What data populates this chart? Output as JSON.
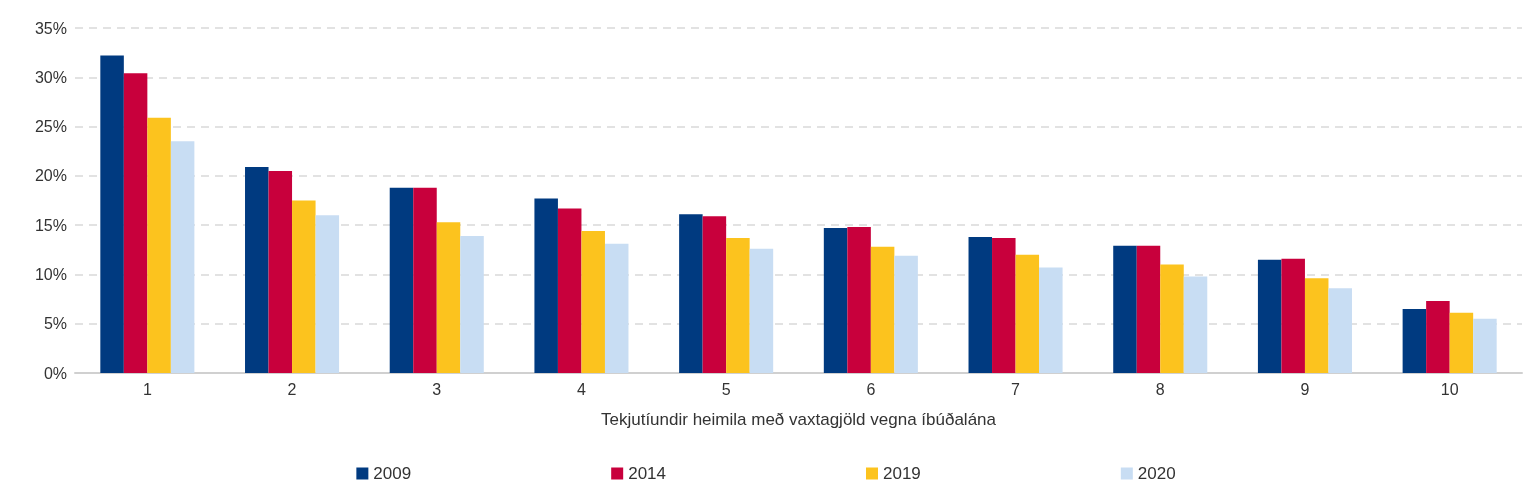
{
  "chart_data": {
    "type": "bar",
    "xlabel": "Tekjutíundir heimila með vaxtagjöld vegna íbúðalána",
    "categories": [
      "1",
      "2",
      "3",
      "4",
      "5",
      "6",
      "7",
      "8",
      "9",
      "10"
    ],
    "series": [
      {
        "name": "2009",
        "color": "#003a80",
        "values": [
          32.2,
          20.9,
          18.8,
          17.7,
          16.1,
          14.7,
          13.8,
          12.9,
          11.5,
          6.5
        ]
      },
      {
        "name": "2014",
        "color": "#c8003c",
        "values": [
          30.4,
          20.5,
          18.8,
          16.7,
          15.9,
          14.8,
          13.7,
          12.9,
          11.6,
          7.3
        ]
      },
      {
        "name": "2019",
        "color": "#fcc31e",
        "values": [
          25.9,
          17.5,
          15.3,
          14.4,
          13.7,
          12.8,
          12.0,
          11.0,
          9.6,
          6.1
        ]
      },
      {
        "name": "2020",
        "color": "#c8ddf3",
        "values": [
          23.5,
          16.0,
          13.9,
          13.1,
          12.6,
          11.9,
          10.7,
          9.8,
          8.6,
          5.5
        ]
      }
    ],
    "ylim": [
      0,
      35
    ],
    "yticks": [
      {
        "value": 0,
        "label": "0%"
      },
      {
        "value": 5,
        "label": "5%"
      },
      {
        "value": 10,
        "label": "10%"
      },
      {
        "value": 15,
        "label": "15%"
      },
      {
        "value": 20,
        "label": "20%"
      },
      {
        "value": 25,
        "label": "25%"
      },
      {
        "value": 30,
        "label": "30%"
      },
      {
        "value": 35,
        "label": "35%"
      }
    ],
    "grid": "y",
    "legend": "bottom"
  }
}
